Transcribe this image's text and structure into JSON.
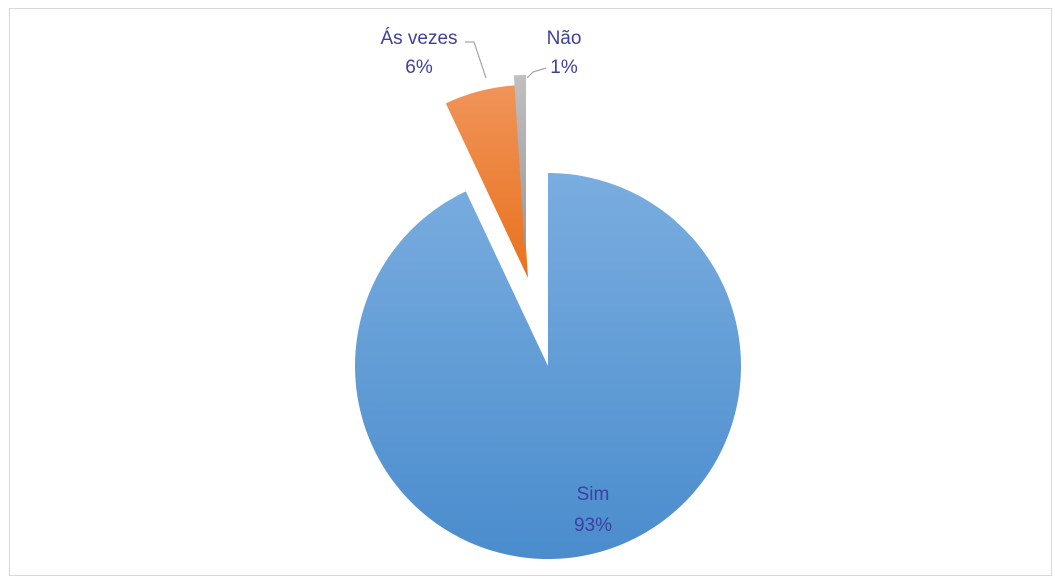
{
  "chart_data": {
    "type": "pie",
    "title": "",
    "slices": [
      {
        "label": "Sim",
        "value": 93,
        "value_label": "93%",
        "color": "#5b9bd5"
      },
      {
        "label": "Ás vezes",
        "value": 6,
        "value_label": "6%",
        "color": "#ed7d31"
      },
      {
        "label": "Não",
        "value": 1,
        "value_label": "1%",
        "color": "#a5a5a5"
      }
    ],
    "legend": "none",
    "exploded": [
      "Ás vezes",
      "Não"
    ],
    "label_color": "#3f3f9f"
  }
}
